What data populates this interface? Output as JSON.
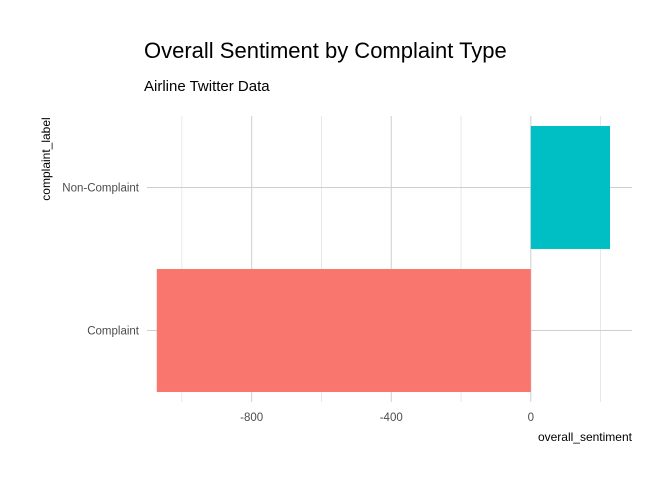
{
  "chart_data": {
    "type": "bar",
    "orientation": "horizontal",
    "title": "Overall Sentiment by Complaint Type",
    "subtitle": "Airline Twitter Data",
    "xlabel": "overall_sentiment",
    "ylabel": "complaint_label",
    "categories": [
      "Complaint",
      "Non-Complaint"
    ],
    "values": [
      -1072,
      227
    ],
    "colors": [
      "#F8766D",
      "#00BFC4"
    ],
    "xlim": [
      -1100,
      290
    ],
    "x_ticks": [
      -800,
      -400,
      0
    ],
    "x_tick_labels": [
      "-800",
      "-400",
      "0"
    ],
    "x_minor_ticks": [
      -1000,
      -600,
      -200,
      200
    ],
    "grid": true,
    "legend": "none"
  }
}
